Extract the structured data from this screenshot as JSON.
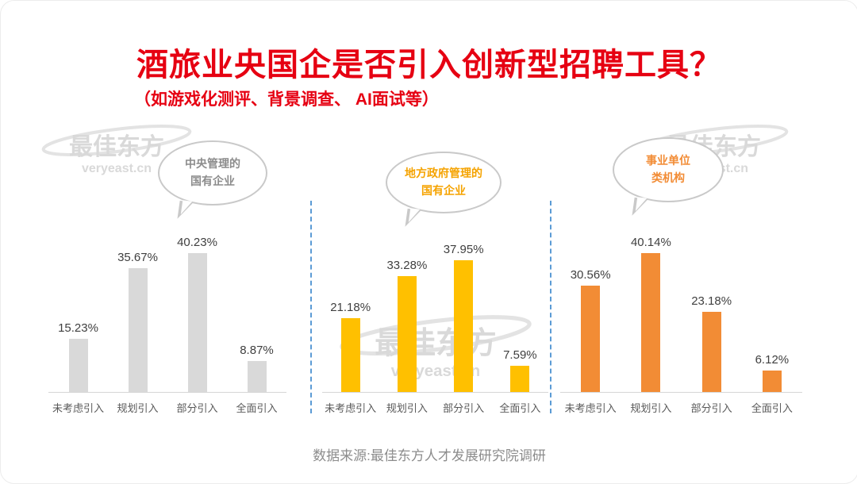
{
  "header": {
    "title": "酒旅业央国企是否引入创新型招聘工具？",
    "subtitle": "（如游戏化测评、背景调查、 AI面试等）"
  },
  "footer": {
    "source": "数据来源:最佳东方人才发展研究院调研"
  },
  "watermark": {
    "name": "最佳东方",
    "url": "veryeast.cn"
  },
  "colors": {
    "title_red": "#E60012",
    "divider_blue": "#5B9BD5",
    "central_bar": "#D9D9D9",
    "local_bar": "#FFC000",
    "institution_bar": "#F28C35"
  },
  "chart_data": {
    "type": "bar",
    "title": "酒旅业央国企是否引入创新型招聘工具？",
    "subtitle": "（如游戏化测评、背景调查、 AI面试等）",
    "categories": [
      "未考虑引入",
      "规划引入",
      "部分引入",
      "全面引入"
    ],
    "value_suffix": "%",
    "ylim": [
      0,
      45
    ],
    "grid": false,
    "legend_position": "speech-bubbles-above-groups",
    "series": [
      {
        "name": "中央管理的国有企业",
        "label_lines": [
          "中央管理的",
          "国有企业"
        ],
        "values": [
          15.23,
          35.67,
          40.23,
          8.87
        ],
        "color": "#D9D9D9",
        "label_color": "#8C8C8C"
      },
      {
        "name": "地方政府管理的国有企业",
        "label_lines": [
          "地方政府管理的",
          "国有企业"
        ],
        "values": [
          21.18,
          33.28,
          37.95,
          7.59
        ],
        "color": "#FFC000",
        "label_color": "#F5A300"
      },
      {
        "name": "事业单位类机构",
        "label_lines": [
          "事业单位",
          "类机构"
        ],
        "values": [
          30.56,
          40.14,
          23.18,
          6.12
        ],
        "color": "#F28C35",
        "label_color": "#F28C35"
      }
    ]
  }
}
